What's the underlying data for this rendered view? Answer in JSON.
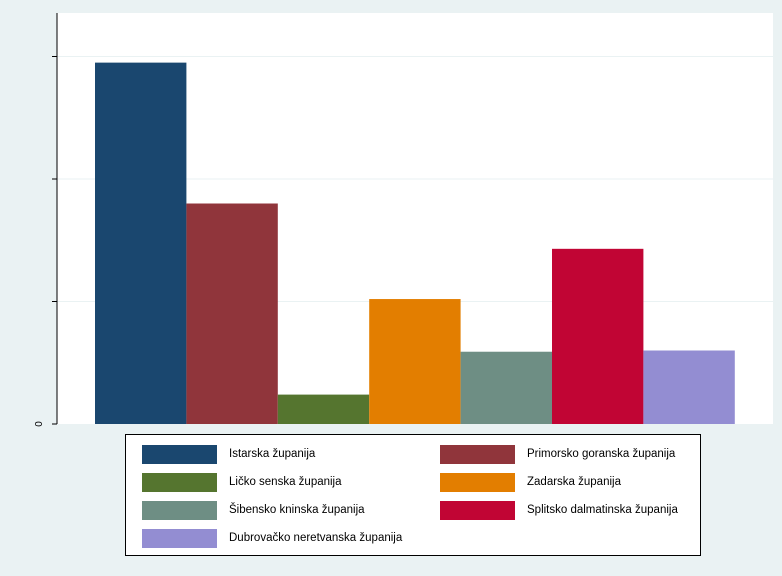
{
  "chart_data": {
    "type": "bar",
    "title": "",
    "xlabel": "",
    "ylabel": "",
    "ylim": [
      0,
      3.1
    ],
    "yticks": [
      0,
      1,
      2,
      3
    ],
    "ytick_labels_shown": [
      "0"
    ],
    "grid": true,
    "legend_position": "bottom",
    "series": [
      {
        "name": "Istarska županija",
        "value": 2.95,
        "color": "#1a476f"
      },
      {
        "name": "Primorsko goranska županija",
        "value": 1.8,
        "color": "#90353b"
      },
      {
        "name": "Ličko senska županija",
        "value": 0.24,
        "color": "#55752f"
      },
      {
        "name": "Zadarska županija",
        "value": 1.02,
        "color": "#e37e00"
      },
      {
        "name": "Šibensko kninska županija",
        "value": 0.59,
        "color": "#6e8e84"
      },
      {
        "name": "Splitsko dalmatinska županija",
        "value": 1.43,
        "color": "#c10534"
      },
      {
        "name": "Dubrovačko neretvanska županija",
        "value": 0.6,
        "color": "#938dd2"
      }
    ]
  }
}
